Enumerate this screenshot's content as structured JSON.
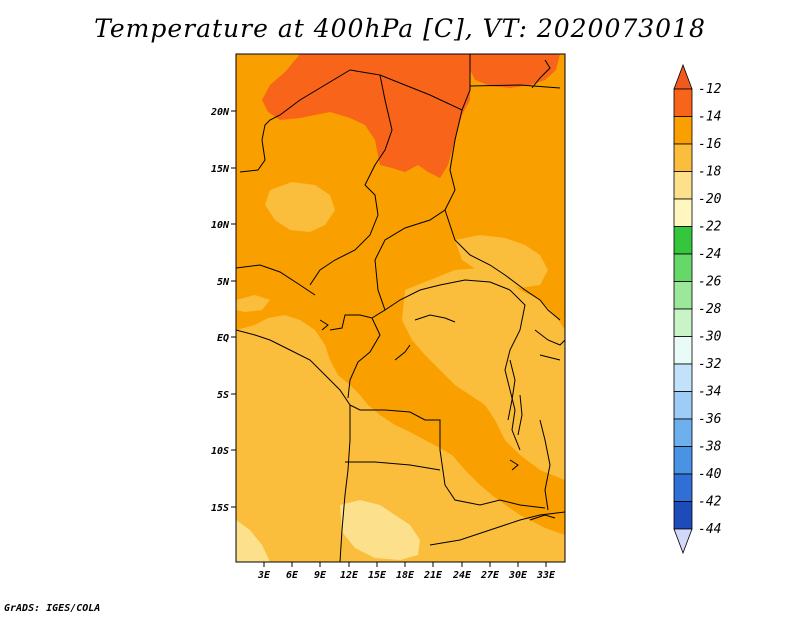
{
  "title": "Temperature at 400hPa [C], VT: 2020073018",
  "credit": "GrADS: IGES/COLA",
  "map": {
    "lon_labels": [
      "3E",
      "6E",
      "9E",
      "12E",
      "15E",
      "18E",
      "21E",
      "24E",
      "27E",
      "30E",
      "33E"
    ],
    "lat_labels": [
      "20N",
      "15N",
      "10N",
      "5N",
      "EQ",
      "5S",
      "10S",
      "15S"
    ]
  },
  "colorbar": {
    "levels": [
      "-12",
      "-14",
      "-16",
      "-18",
      "-20",
      "-22",
      "-24",
      "-26",
      "-28",
      "-30",
      "-32",
      "-34",
      "-36",
      "-38",
      "-40",
      "-42",
      "-44"
    ],
    "colors": {
      "above": "#f05a1e",
      "b1": "#f8641a",
      "b2": "#f9a000",
      "b3": "#fbbd3c",
      "b4": "#fde08c",
      "b5": "#fff6c0",
      "b6": "#35c63c",
      "b7": "#66d86a",
      "b8": "#9be89a",
      "b9": "#c8f4c8",
      "b10": "#e8fbf6",
      "b11": "#c2e2fa",
      "b12": "#9dcdf6",
      "b13": "#6eb0ee",
      "b14": "#4a92e4",
      "b15": "#2f6fd6",
      "b16": "#1d4cba",
      "b17": "#121f8a",
      "below": "#d4d8f8"
    }
  }
}
